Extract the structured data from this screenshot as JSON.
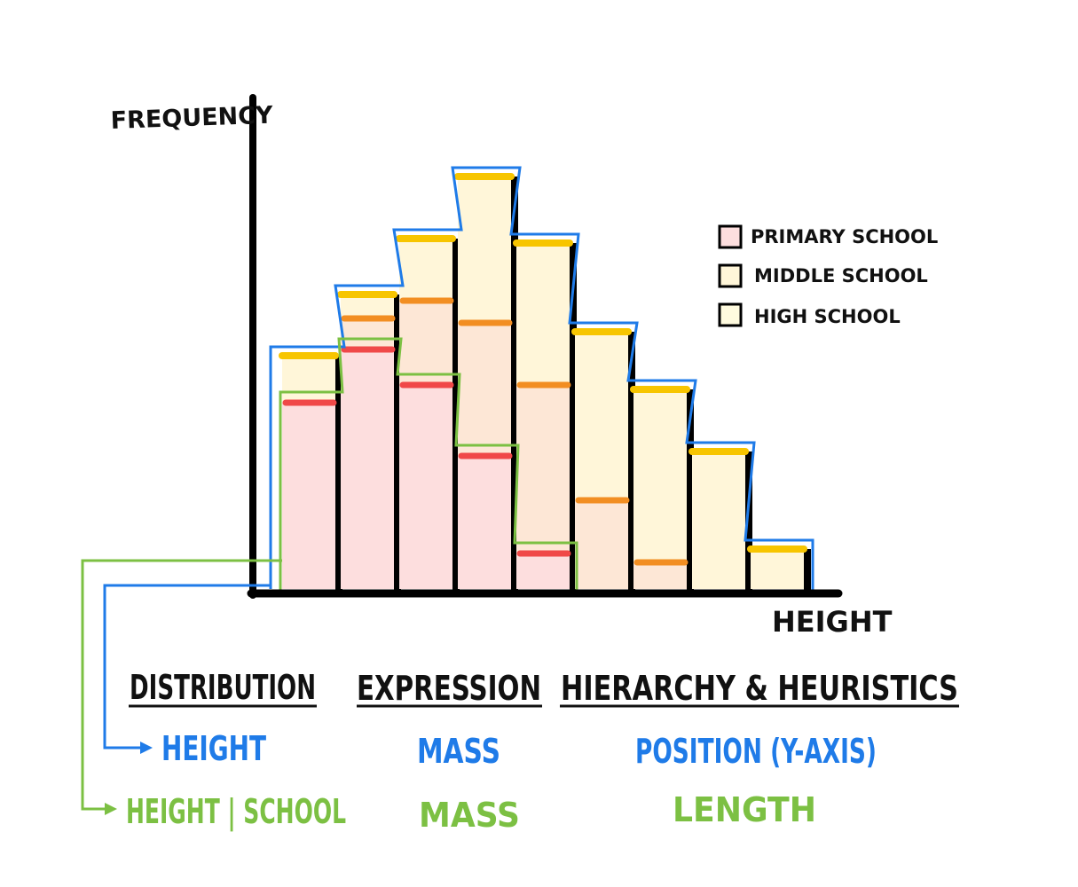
{
  "chart_data": {
    "type": "bar",
    "stacked": true,
    "ylabel": "FREQUENCY",
    "xlabel": "HEIGHT",
    "bins": 9,
    "series": [
      {
        "name": "PRIMARY SCHOOL",
        "values": [
          210,
          270,
          230,
          150,
          40,
          0,
          0,
          0,
          0
        ]
      },
      {
        "name": "MIDDLE SCHOOL",
        "values": [
          0,
          35,
          95,
          150,
          190,
          100,
          30,
          0,
          0
        ]
      },
      {
        "name": "HIGH SCHOOL",
        "values": [
          53,
          27,
          70,
          165,
          160,
          190,
          195,
          155,
          45
        ]
      }
    ],
    "colors": {
      "primary_fill": "#fddede",
      "middle_fill": "#fde7d6",
      "high_fill": "#fff6d9",
      "primary_mark": "#f04848",
      "middle_mark": "#f28e22",
      "high_mark": "#f7c500",
      "outline_blue": "#1f7be8",
      "outline_green": "#7cc043"
    },
    "ylim": [
      0,
      470
    ],
    "legend_position": "top-right"
  },
  "legend": {
    "primary": "PRIMARY SCHOOL",
    "middle": "MIDDLE SCHOOL",
    "high": "HIGH SCHOOL"
  },
  "table": {
    "headers": {
      "distribution": "DISTRIBUTION",
      "expression": "EXPRESSION",
      "hierarchy": "HIERARCHY & HEURISTICS"
    },
    "blue_row": {
      "distribution": "HEIGHT",
      "expression": "MASS",
      "hierarchy": "POSITION (Y-AXIS)"
    },
    "green_row": {
      "distribution": "HEIGHT | SCHOOL",
      "expression": "MASS",
      "hierarchy": "LENGTH"
    }
  }
}
